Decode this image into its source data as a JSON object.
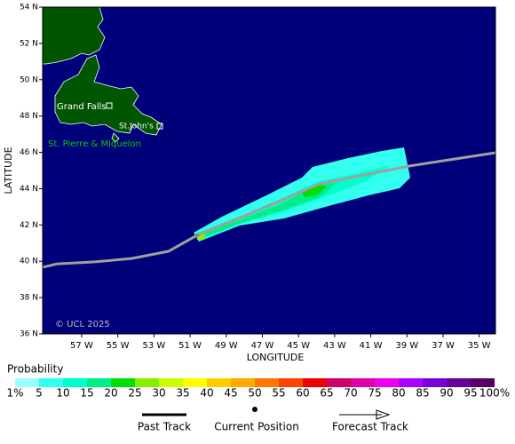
{
  "chart_data": {
    "type": "map",
    "xlabel": "LONGITUDE",
    "ylabel": "LATITUDE",
    "xlim": [
      -59.16,
      -34.1
    ],
    "ylim": [
      36,
      54
    ],
    "xticks": [
      {
        "value": -57,
        "label": "57 W"
      },
      {
        "value": -55,
        "label": "55 W"
      },
      {
        "value": -53,
        "label": "53 W"
      },
      {
        "value": -51,
        "label": "51 W"
      },
      {
        "value": -49,
        "label": "49 W"
      },
      {
        "value": -47,
        "label": "47 W"
      },
      {
        "value": -45,
        "label": "45 W"
      },
      {
        "value": -43,
        "label": "43 W"
      },
      {
        "value": -41,
        "label": "41 W"
      },
      {
        "value": -39,
        "label": "39 W"
      },
      {
        "value": -37,
        "label": "37 W"
      },
      {
        "value": -35,
        "label": "35 W"
      }
    ],
    "yticks": [
      {
        "value": 36,
        "label": "36 N"
      },
      {
        "value": 38,
        "label": "38 N"
      },
      {
        "value": 40,
        "label": "40 N"
      },
      {
        "value": 42,
        "label": "42 N"
      },
      {
        "value": 44,
        "label": "44 N"
      },
      {
        "value": 46,
        "label": "46 N"
      },
      {
        "value": 48,
        "label": "48 N"
      },
      {
        "value": 50,
        "label": "50 N"
      },
      {
        "value": 52,
        "label": "52 N"
      },
      {
        "value": 54,
        "label": "54 N"
      }
    ],
    "places": [
      "Grand Falls",
      "St.John's",
      "St. Pierre & Miquelon"
    ],
    "copyright": "© UCL 2025",
    "series": [
      {
        "name": "Past Track",
        "color": "#a0a0a0",
        "x": [
          -59.16,
          -58.33,
          -56.36,
          -54.25,
          -52.19,
          -50.61
        ],
        "values": [
          39.67,
          39.86,
          39.96,
          40.15,
          40.55,
          41.43
        ]
      },
      {
        "name": "Forecast Track",
        "color": "#a0a0a0",
        "x": [
          -50.61,
          -47.27,
          -43.84,
          -38.92,
          -34.1
        ],
        "values": [
          41.43,
          42.8,
          44.26,
          45.24,
          45.98
        ]
      }
    ],
    "current_position": {
      "name": "Current Position",
      "x": -50.61,
      "value": 41.43
    },
    "legend": {
      "title": "Probability",
      "labels": [
        "1%",
        "5",
        "10",
        "15",
        "20",
        "25",
        "30",
        "35",
        "40",
        "45",
        "50",
        "55",
        "60",
        "65",
        "70",
        "75",
        "80",
        "85",
        "90",
        "95",
        "100%"
      ],
      "colors": [
        "#99ffff",
        "#33ffee",
        "#00ffcc",
        "#00ee88",
        "#00dd00",
        "#88ee00",
        "#ccff00",
        "#ffff00",
        "#ffcc00",
        "#ffaa00",
        "#ff7700",
        "#ff4400",
        "#ee0000",
        "#cc0066",
        "#dd00aa",
        "#ee00ee",
        "#aa00ff",
        "#7700dd",
        "#660099",
        "#550066"
      ]
    }
  }
}
